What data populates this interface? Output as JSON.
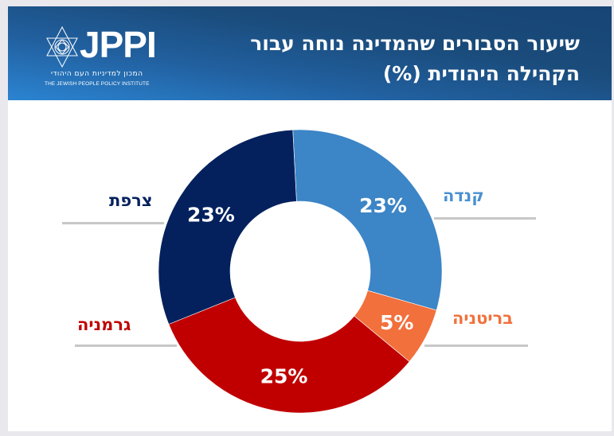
{
  "header": {
    "logo_text": "JPPI",
    "logo_hebrew": "המכון למדיניות העם היהודי",
    "logo_english": "THE JEWISH PEOPLE POLICY INSTITUTE",
    "title_line1": "שיעור הסבורים שהמדינה נוחה עבור",
    "title_line2": "הקהילה היהודית (%)"
  },
  "chart_data": {
    "type": "pie",
    "variant": "donut",
    "title": "שיעור הסבורים שהמדינה נוחה עבור הקהילה היהודית (%)",
    "unit": "%",
    "categories": [
      "קנדה",
      "בריטניה",
      "גרמניה",
      "צרפת"
    ],
    "values": [
      23,
      5,
      25,
      23
    ],
    "labels": [
      "23%",
      "5%",
      "25%",
      "23%"
    ],
    "colors": [
      "#3c85c6",
      "#f2703c",
      "#c00000",
      "#04215e"
    ],
    "label_colors": [
      "#4a90d0",
      "#f2703c",
      "#c00000",
      "#04215e"
    ],
    "legend": "callout labels beside slices"
  }
}
